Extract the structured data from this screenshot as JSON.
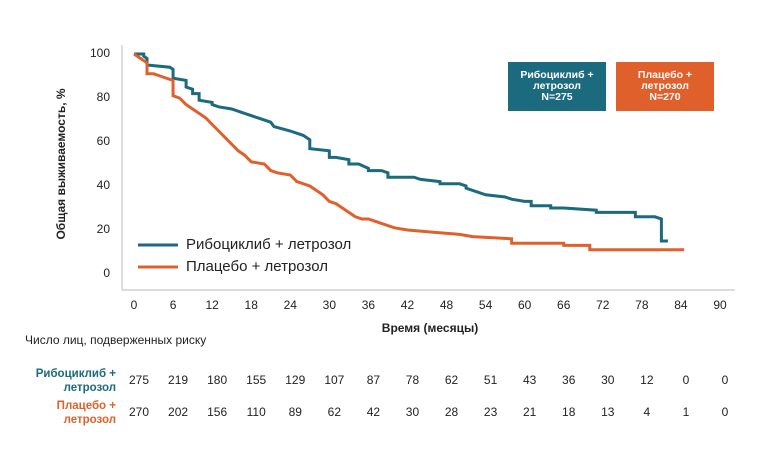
{
  "chart_data": {
    "type": "line",
    "y_label": "Общая выживаемость, %",
    "x_label": "Время (месяцы)",
    "xlim": [
      0,
      90
    ],
    "xticks": [
      0,
      6,
      12,
      18,
      24,
      30,
      36,
      42,
      48,
      54,
      60,
      66,
      72,
      78,
      84,
      90
    ],
    "ylim": [
      0,
      100
    ],
    "yticks": [
      0,
      20,
      40,
      60,
      80,
      100
    ],
    "grid": false,
    "series": [
      {
        "name": "Рибоциклиб + летрозол",
        "color": "#1b6a7e",
        "x": [
          0,
          1.5,
          1.5,
          2,
          2,
          5.5,
          6,
          6,
          8,
          8,
          9,
          9,
          10,
          10,
          12,
          12,
          13,
          15,
          17,
          19,
          21,
          21.5,
          24,
          26,
          27,
          27,
          30,
          30,
          31,
          33,
          33,
          34.5,
          36,
          36,
          38,
          39,
          39,
          43,
          44,
          44,
          47,
          47,
          50,
          51,
          51,
          54,
          57,
          58,
          60,
          61,
          61,
          64,
          64,
          66,
          71,
          71,
          77,
          77,
          80,
          81,
          81,
          82
        ],
        "values": [
          100,
          100,
          99,
          98,
          95,
          94,
          93,
          89,
          88,
          85,
          84,
          82,
          82,
          79,
          78,
          77,
          76,
          75,
          73,
          71,
          69,
          67,
          65,
          63,
          61,
          57,
          56,
          53,
          53,
          52,
          50,
          50,
          48,
          47,
          47,
          46,
          44,
          44,
          43,
          43,
          42,
          41,
          41,
          40,
          39,
          36,
          35,
          34,
          33,
          33,
          31,
          31,
          30,
          30,
          29,
          28,
          28,
          26,
          26,
          25,
          15,
          15
        ]
      },
      {
        "name": "Плацебо + летрозол",
        "color": "#e0602c",
        "x": [
          0,
          1.5,
          2,
          2,
          3,
          4,
          6,
          6,
          7,
          8,
          9,
          10,
          11,
          12,
          13,
          14,
          15,
          16,
          17,
          18,
          20,
          21,
          22,
          24,
          25,
          27,
          28,
          29,
          30,
          31,
          32,
          33,
          34,
          35,
          36,
          37,
          38,
          40,
          42,
          46,
          50,
          52,
          58,
          58,
          66,
          66,
          70,
          70,
          84.5
        ],
        "values": [
          100,
          97,
          96,
          91,
          91,
          90,
          88,
          81,
          80,
          77,
          75,
          73,
          71,
          68,
          65,
          62,
          59,
          56,
          54,
          51,
          50,
          47,
          46,
          45,
          42,
          40,
          38,
          36,
          33,
          32,
          30,
          28,
          26,
          25,
          25,
          24,
          23,
          21,
          20,
          19,
          18,
          17,
          16,
          14,
          14,
          13,
          13,
          11,
          11
        ]
      }
    ],
    "arm_boxes": [
      {
        "color": "#1b6a7e",
        "lines": [
          "Рибоциклиб +",
          "летрозол",
          "N=275"
        ]
      },
      {
        "color": "#e0602c",
        "lines": [
          "Плацебо +",
          "летрозол",
          "N=270"
        ]
      }
    ]
  },
  "risk_table": {
    "title": "Число лиц, подверженных риску",
    "rows": [
      {
        "color": "#1b6a7e",
        "label": [
          "Рибоциклиб +",
          "летрозол"
        ],
        "values": [
          275,
          219,
          180,
          155,
          129,
          107,
          87,
          78,
          62,
          51,
          43,
          36,
          30,
          12,
          0,
          0
        ]
      },
      {
        "color": "#e0602c",
        "label": [
          "Плацебо +",
          "летрозол"
        ],
        "values": [
          270,
          202,
          156,
          110,
          89,
          62,
          42,
          30,
          28,
          23,
          21,
          18,
          13,
          4,
          1,
          0
        ]
      }
    ]
  }
}
